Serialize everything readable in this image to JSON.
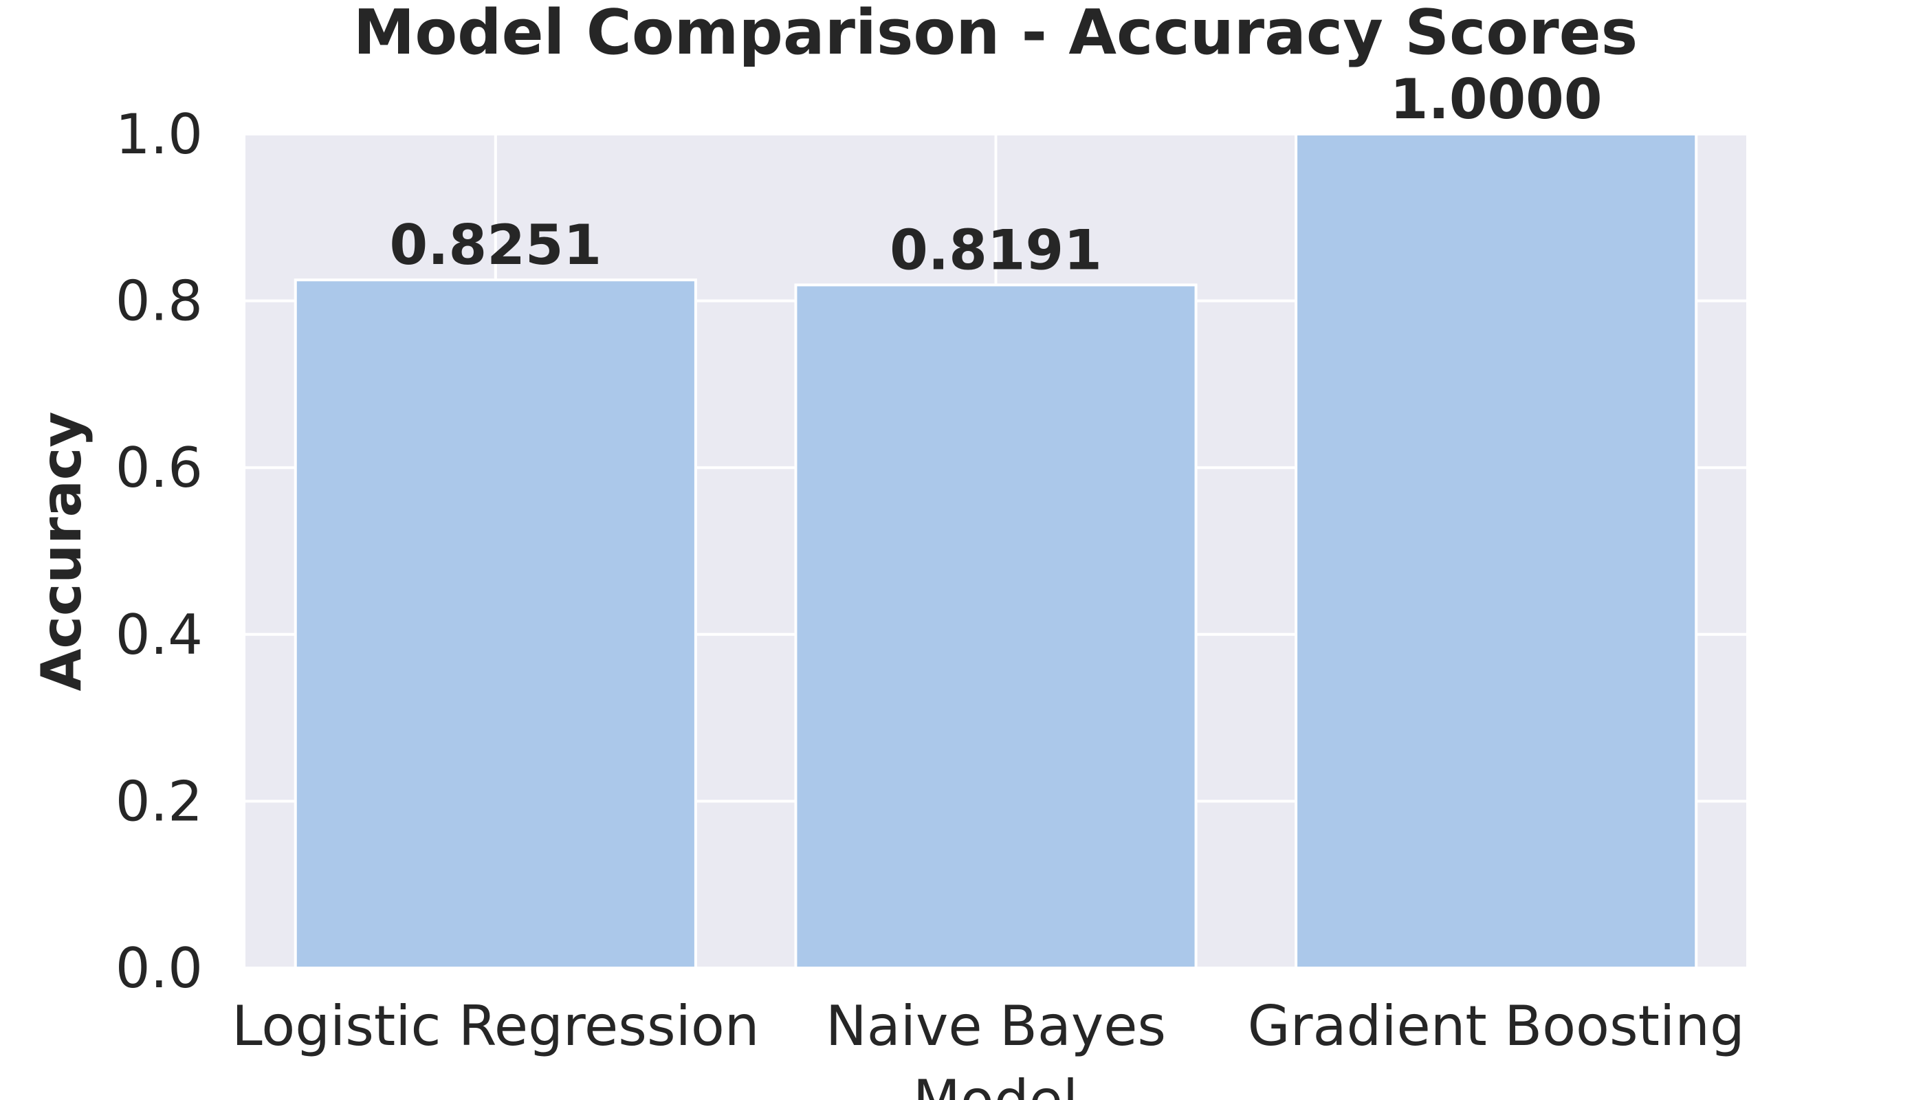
{
  "chart_data": {
    "type": "bar",
    "title": "Model Comparison - Accuracy Scores",
    "xlabel": "Model",
    "ylabel": "Accuracy",
    "categories": [
      "Logistic Regression",
      "Naive Bayes",
      "Gradient Boosting"
    ],
    "values": [
      0.8251,
      0.8191,
      1.0
    ],
    "value_labels": [
      "0.8251",
      "0.8191",
      "1.0000"
    ],
    "ylim": [
      0,
      1.0
    ],
    "yticks": [
      0.0,
      0.2,
      0.4,
      0.6,
      0.8,
      1.0
    ],
    "ytick_labels": [
      "0.0",
      "0.2",
      "0.4",
      "0.6",
      "0.8",
      "1.0"
    ],
    "grid": true,
    "colors": {
      "bar": "#abc8ea",
      "plot_background": "#eaeaf2",
      "grid": "#ffffff",
      "text": "#262626"
    }
  }
}
